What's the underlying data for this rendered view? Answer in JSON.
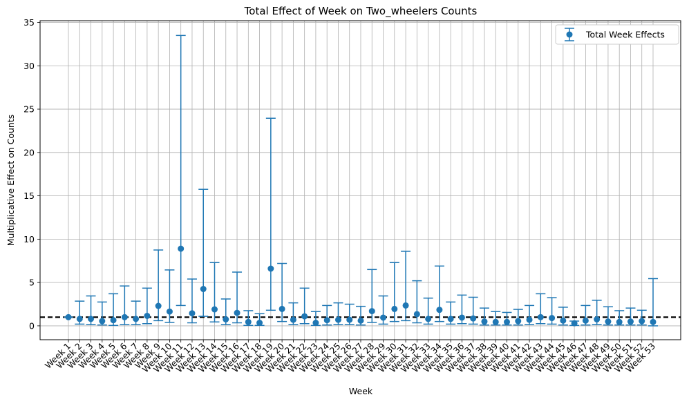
{
  "chart_data": {
    "type": "errorbar",
    "title": "Total Effect of Week on Two_wheelers Counts",
    "xlabel": "Week",
    "ylabel": "Multiplicative Effect on Counts",
    "ylim": [
      -1.6,
      35.2
    ],
    "yticks": [
      0,
      5,
      10,
      15,
      20,
      25,
      30,
      35
    ],
    "grid": true,
    "legend": {
      "position": "top-right",
      "label": "Total Week Effects"
    },
    "reference_line": {
      "y": 1.0,
      "style": "dashed",
      "color": "#000000"
    },
    "categories": [
      "Week 1",
      "Week 2",
      "Week 3",
      "Week 4",
      "Week 5",
      "Week 6",
      "Week 7",
      "Week 8",
      "Week 9",
      "Week 10",
      "Week 11",
      "Week 12",
      "Week 13",
      "Week 14",
      "Week 15",
      "Week 16",
      "Week 17",
      "Week 18",
      "Week 19",
      "Week 20",
      "Week 21",
      "Week 22",
      "Week 23",
      "Week 24",
      "Week 25",
      "Week 26",
      "Week 27",
      "Week 28",
      "Week 29",
      "Week 30",
      "Week 31",
      "Week 32",
      "Week 33",
      "Week 34",
      "Week 35",
      "Week 36",
      "Week 37",
      "Week 38",
      "Week 39",
      "Week 40",
      "Week 41",
      "Week 42",
      "Week 43",
      "Week 44",
      "Week 45",
      "Week 46",
      "Week 47",
      "Week 48",
      "Week 49",
      "Week 50",
      "Week 51",
      "Week 52",
      "Week 53"
    ],
    "series": [
      {
        "name": "Total Week Effects",
        "color": "#1f77b4",
        "values": [
          1.0,
          0.8,
          0.8,
          0.55,
          0.65,
          1.0,
          0.8,
          1.15,
          2.3,
          1.65,
          8.9,
          1.45,
          4.25,
          1.9,
          0.75,
          1.5,
          0.45,
          0.35,
          6.6,
          1.95,
          0.7,
          1.1,
          0.35,
          0.65,
          0.7,
          0.7,
          0.6,
          1.7,
          0.95,
          1.95,
          2.35,
          1.35,
          0.8,
          1.85,
          0.8,
          0.95,
          0.85,
          0.5,
          0.45,
          0.45,
          0.55,
          0.7,
          1.0,
          0.9,
          0.6,
          0.3,
          0.6,
          0.75,
          0.5,
          0.45,
          0.5,
          0.55,
          0.45
        ],
        "lower": [
          1.0,
          0.2,
          0.15,
          0.1,
          0.05,
          0.15,
          0.15,
          0.25,
          0.6,
          0.4,
          2.35,
          0.35,
          1.1,
          0.45,
          0.15,
          0.35,
          0.05,
          0.05,
          1.8,
          0.5,
          0.15,
          0.25,
          0.05,
          0.1,
          0.15,
          0.15,
          0.1,
          0.4,
          0.2,
          0.5,
          0.6,
          0.35,
          0.2,
          0.5,
          0.2,
          0.25,
          0.2,
          0.1,
          0.1,
          0.1,
          0.1,
          0.15,
          0.25,
          0.2,
          0.1,
          0.05,
          0.1,
          0.15,
          0.1,
          0.1,
          0.1,
          0.1,
          0.0
        ],
        "upper": [
          1.0,
          2.85,
          3.45,
          2.75,
          3.7,
          4.6,
          2.85,
          4.35,
          8.75,
          6.45,
          33.5,
          5.4,
          15.75,
          7.3,
          3.1,
          6.2,
          1.75,
          1.4,
          23.95,
          7.2,
          2.65,
          4.35,
          1.65,
          2.35,
          2.65,
          2.5,
          2.25,
          6.5,
          3.45,
          7.3,
          8.6,
          5.2,
          3.2,
          6.9,
          2.75,
          3.55,
          3.3,
          2.05,
          1.65,
          1.55,
          1.9,
          2.35,
          3.7,
          3.25,
          2.15,
          0.55,
          2.35,
          2.95,
          2.2,
          1.75,
          2.05,
          1.8,
          5.45
        ]
      }
    ]
  }
}
